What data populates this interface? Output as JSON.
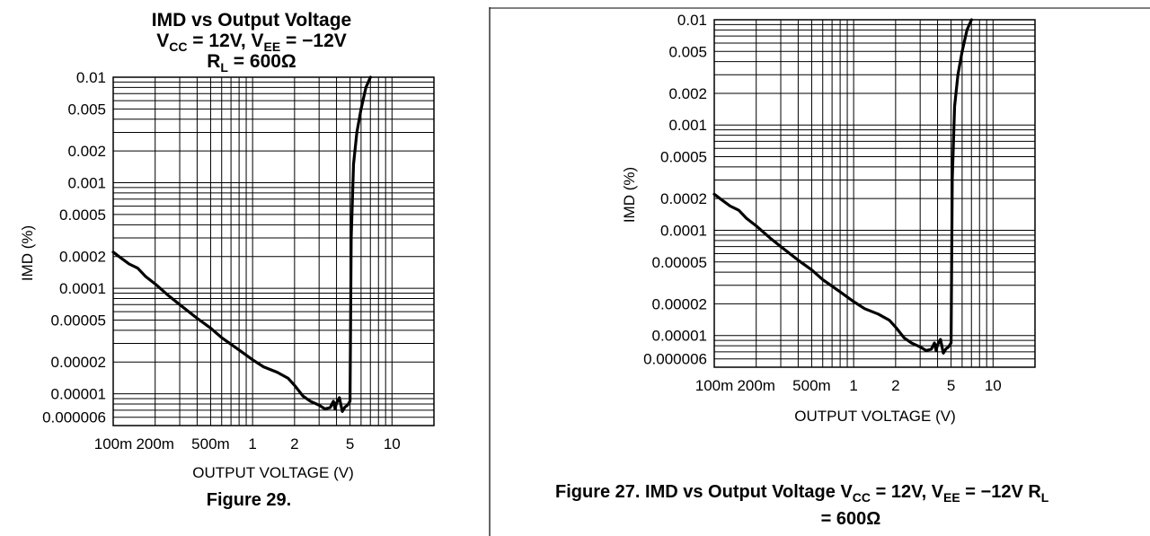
{
  "chart_data": [
    {
      "type": "line",
      "title": "IMD vs Output Voltage",
      "subtitle_parts": {
        "vcc_main": "V",
        "vcc_sub": "CC",
        "vcc_val": " = 12V, ",
        "vee_main": "V",
        "vee_sub": "EE",
        "vee_val": " = −12V",
        "rl_main": "R",
        "rl_sub": "L",
        "rl_val": " = 600Ω"
      },
      "xlabel": "OUTPUT VOLTAGE (V)",
      "ylabel": "IMD (%)",
      "caption": "Figure 29.",
      "x_scale": "log",
      "y_scale": "log",
      "xlim": [
        0.1,
        20
      ],
      "ylim": [
        5e-06,
        0.01
      ],
      "grid": true,
      "x_ticks": [
        {
          "value": 0.1,
          "label": "100m"
        },
        {
          "value": 0.2,
          "label": "200m"
        },
        {
          "value": 0.5,
          "label": "500m"
        },
        {
          "value": 1,
          "label": "1"
        },
        {
          "value": 2,
          "label": "2"
        },
        {
          "value": 5,
          "label": "5"
        },
        {
          "value": 10,
          "label": "10"
        }
      ],
      "y_ticks": [
        {
          "value": 0.01,
          "label": "0.01"
        },
        {
          "value": 0.005,
          "label": "0.005"
        },
        {
          "value": 0.002,
          "label": "0.002"
        },
        {
          "value": 0.001,
          "label": "0.001"
        },
        {
          "value": 0.0005,
          "label": "0.0005"
        },
        {
          "value": 0.0002,
          "label": "0.0002"
        },
        {
          "value": 0.0001,
          "label": "0.0001"
        },
        {
          "value": 5e-05,
          "label": "0.00005"
        },
        {
          "value": 2e-05,
          "label": "0.00002"
        },
        {
          "value": 1e-05,
          "label": "0.00001"
        },
        {
          "value": 6e-06,
          "label": "0.000006"
        }
      ],
      "series": [
        {
          "x": [
            0.1,
            0.11,
            0.13,
            0.15,
            0.17,
            0.2,
            0.25,
            0.3,
            0.4,
            0.5,
            0.6,
            0.8,
            1.0,
            1.2,
            1.5,
            1.8,
            2.0,
            2.3,
            2.6,
            3.0,
            3.3,
            3.6,
            3.8,
            3.9,
            4.0,
            4.2,
            4.4,
            4.6,
            4.8,
            5.0,
            5.1,
            5.3,
            5.6,
            6.0,
            6.5,
            7.0
          ],
          "y": [
            0.00022,
            0.0002,
            0.00017,
            0.000155,
            0.00013,
            0.00011,
            8.5e-05,
            7e-05,
            5.2e-05,
            4.2e-05,
            3.4e-05,
            2.6e-05,
            2.1e-05,
            1.8e-05,
            1.6e-05,
            1.4e-05,
            1.2e-05,
            9.5e-06,
            8.5e-06,
            7.8e-06,
            7.2e-06,
            7.4e-06,
            8.5e-06,
            7.2e-06,
            8.2e-06,
            9.2e-06,
            6.8e-06,
            7.5e-06,
            7.8e-06,
            8.5e-06,
            0.0003,
            0.0015,
            0.003,
            0.005,
            0.008,
            0.01
          ]
        }
      ]
    },
    {
      "type": "line",
      "xlabel": "OUTPUT VOLTAGE (V)",
      "ylabel": "IMD (%)",
      "caption_parts": {
        "c1": "Figure 27. IMD vs Output Voltage ",
        "vcc_main": "V",
        "vcc_sub": "CC",
        "vcc_val": " = 12V, ",
        "vee_main": "V",
        "vee_sub": "EE",
        "vee_val": " = −12V ",
        "rl_main": "R",
        "rl_sub": "L",
        "line2": "= 600Ω"
      },
      "x_scale": "log",
      "y_scale": "log",
      "xlim": [
        0.1,
        20
      ],
      "ylim": [
        5e-06,
        0.01
      ],
      "grid": true,
      "x_ticks": [
        {
          "value": 0.1,
          "label": "100m"
        },
        {
          "value": 0.2,
          "label": "200m"
        },
        {
          "value": 0.5,
          "label": "500m"
        },
        {
          "value": 1,
          "label": "1"
        },
        {
          "value": 2,
          "label": "2"
        },
        {
          "value": 5,
          "label": "5"
        },
        {
          "value": 10,
          "label": "10"
        }
      ],
      "y_ticks": [
        {
          "value": 0.01,
          "label": "0.01"
        },
        {
          "value": 0.005,
          "label": "0.005"
        },
        {
          "value": 0.002,
          "label": "0.002"
        },
        {
          "value": 0.001,
          "label": "0.001"
        },
        {
          "value": 0.0005,
          "label": "0.0005"
        },
        {
          "value": 0.0002,
          "label": "0.0002"
        },
        {
          "value": 0.0001,
          "label": "0.0001"
        },
        {
          "value": 5e-05,
          "label": "0.00005"
        },
        {
          "value": 2e-05,
          "label": "0.00002"
        },
        {
          "value": 1e-05,
          "label": "0.00001"
        },
        {
          "value": 6e-06,
          "label": "0.000006"
        }
      ],
      "series": [
        {
          "x": [
            0.1,
            0.11,
            0.13,
            0.15,
            0.17,
            0.2,
            0.25,
            0.3,
            0.4,
            0.5,
            0.6,
            0.8,
            1.0,
            1.2,
            1.5,
            1.8,
            2.0,
            2.3,
            2.6,
            3.0,
            3.3,
            3.6,
            3.8,
            3.9,
            4.0,
            4.2,
            4.4,
            4.6,
            4.8,
            5.0,
            5.1,
            5.3,
            5.6,
            6.0,
            6.5,
            7.0
          ],
          "y": [
            0.00022,
            0.0002,
            0.00017,
            0.000155,
            0.00013,
            0.00011,
            8.5e-05,
            7e-05,
            5.2e-05,
            4.2e-05,
            3.4e-05,
            2.6e-05,
            2.1e-05,
            1.8e-05,
            1.6e-05,
            1.4e-05,
            1.2e-05,
            9.5e-06,
            8.5e-06,
            7.8e-06,
            7.2e-06,
            7.4e-06,
            8.5e-06,
            7.2e-06,
            8.2e-06,
            9.2e-06,
            6.8e-06,
            7.5e-06,
            7.8e-06,
            8.5e-06,
            0.0003,
            0.0015,
            0.003,
            0.005,
            0.008,
            0.01
          ]
        }
      ]
    }
  ]
}
